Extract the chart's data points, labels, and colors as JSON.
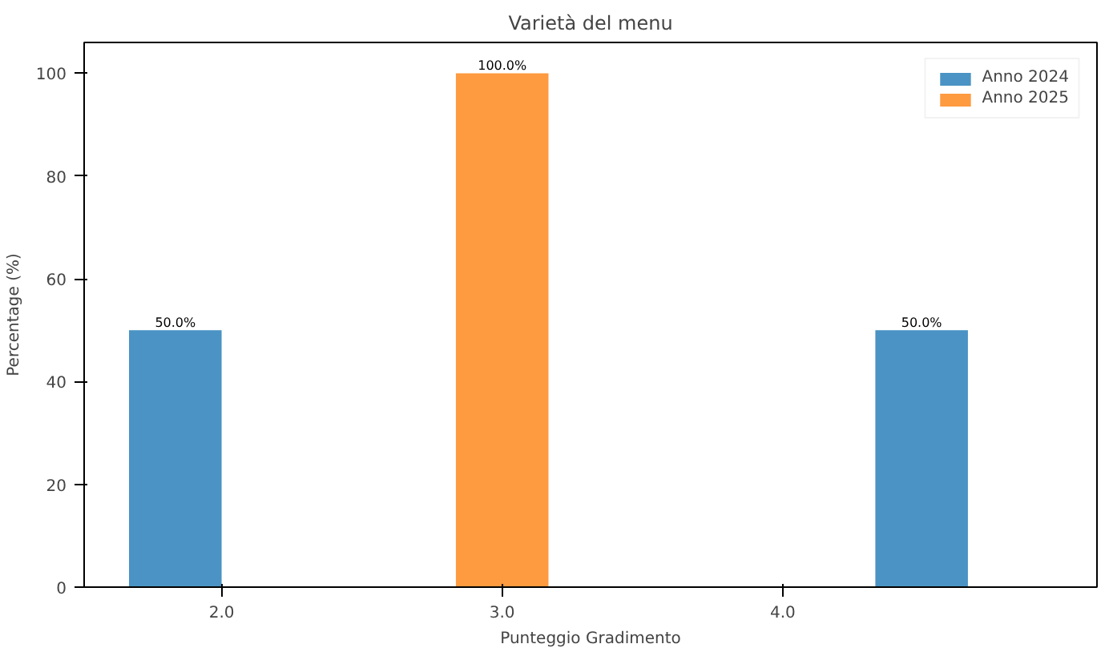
{
  "chart_data": {
    "type": "bar",
    "title": "Varietà del menu",
    "xlabel": "Punteggio Gradimento",
    "ylabel": "Percentage (%)",
    "xlim": [
      1.51,
      5.12
    ],
    "xticks": [
      {
        "value": 2,
        "label": "2.0"
      },
      {
        "value": 3,
        "label": "3.0"
      },
      {
        "value": 4,
        "label": "4.0"
      }
    ],
    "ylim": [
      0,
      106
    ],
    "yticks": [
      0,
      20,
      40,
      60,
      80,
      100
    ],
    "grid": false,
    "legend": "top right",
    "series": [
      {
        "name": "Anno 2024",
        "color": "#4a93c4",
        "x": [
          1.835,
          4.495
        ],
        "values": [
          50,
          50
        ],
        "value_labels": [
          "50.0%",
          "50.0%"
        ]
      },
      {
        "name": "Anno 2025",
        "color": "#fe9a3f",
        "x": [
          3.0
        ],
        "values": [
          100
        ],
        "value_labels": [
          "100.0%"
        ]
      }
    ]
  }
}
